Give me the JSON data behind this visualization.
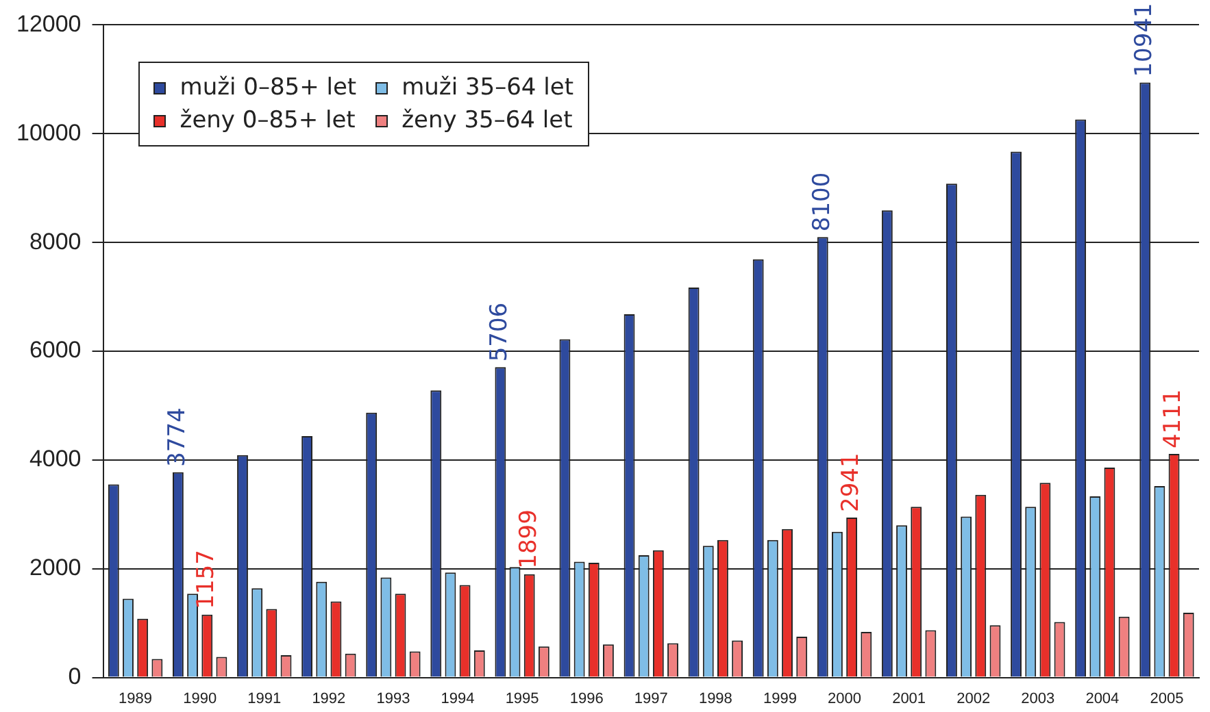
{
  "chart_data": {
    "type": "bar",
    "categories": [
      "1989",
      "1990",
      "1991",
      "1992",
      "1993",
      "1994",
      "1995",
      "1996",
      "1997",
      "1998",
      "1999",
      "2000",
      "2001",
      "2002",
      "2003",
      "2004",
      "2005"
    ],
    "series": [
      {
        "name": "muži 0–85+ let",
        "color": "#2e4a9e",
        "values": [
          3550,
          3774,
          4090,
          4440,
          4870,
          5280,
          5706,
          6220,
          6680,
          7170,
          7690,
          8100,
          8590,
          9080,
          9670,
          10260,
          10941
        ],
        "value_labels": [
          null,
          "3774",
          null,
          null,
          null,
          null,
          "5706",
          null,
          null,
          null,
          null,
          "8100",
          null,
          null,
          null,
          null,
          "10941"
        ]
      },
      {
        "name": "muži 35–64 let",
        "color": "#7fbde6",
        "values": [
          1450,
          1540,
          1640,
          1760,
          1840,
          1930,
          2030,
          2130,
          2250,
          2420,
          2530,
          2680,
          2800,
          2960,
          3140,
          3330,
          3520
        ]
      },
      {
        "name": "ženy 0–85+ let",
        "color": "#e8302a",
        "values": [
          1080,
          1157,
          1260,
          1400,
          1540,
          1700,
          1899,
          2110,
          2340,
          2530,
          2730,
          2941,
          3140,
          3360,
          3580,
          3860,
          4111
        ],
        "value_labels": [
          null,
          "1157",
          null,
          null,
          null,
          null,
          "1899",
          null,
          null,
          null,
          null,
          "2941",
          null,
          null,
          null,
          null,
          "4111"
        ]
      },
      {
        "name": "ženy 35–64 let",
        "color": "#ef8080",
        "values": [
          340,
          380,
          410,
          440,
          480,
          500,
          570,
          610,
          630,
          680,
          750,
          840,
          870,
          960,
          1020,
          1120,
          1190
        ]
      }
    ],
    "ylim": [
      0,
      12000
    ],
    "yticks": [
      0,
      2000,
      4000,
      6000,
      8000,
      10000,
      12000
    ],
    "grid": "y",
    "legend": "top left"
  }
}
